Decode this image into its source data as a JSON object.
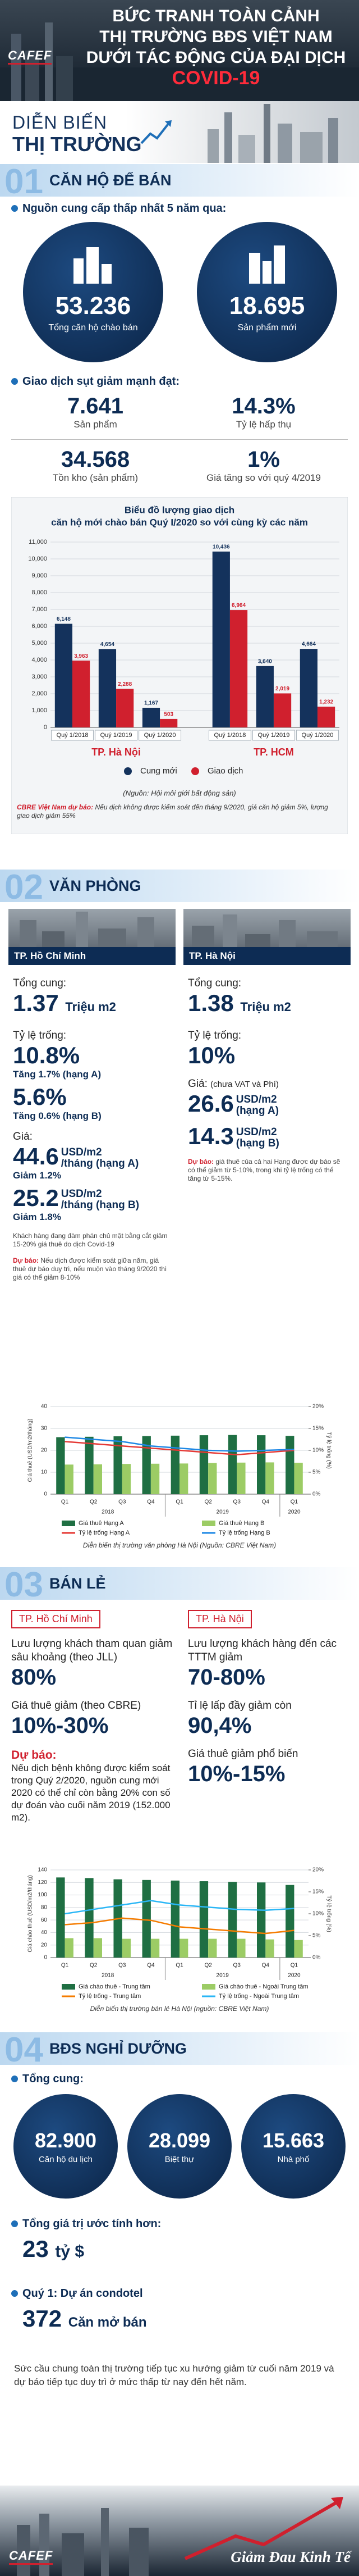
{
  "header": {
    "logo": "CAFEF",
    "title": [
      "BỨC TRANH TOÀN CẢNH",
      "THỊ TRƯỜNG BĐS VIỆT NAM",
      "DƯỚI TÁC ĐỘNG CỦA ĐẠI DỊCH"
    ],
    "highlight": "COVID-19"
  },
  "banner": [
    "DIỄN BIẾN",
    "THỊ TRƯỜNG"
  ],
  "apartment": {
    "number": "01",
    "title": "CĂN HỘ ĐỂ BÁN",
    "supply_heading": "Nguồn cung cấp thấp nhất 5 năm qua:",
    "circles": [
      {
        "value": "53.236",
        "label": "Tổng căn hộ chào bán"
      },
      {
        "value": "18.695",
        "label": "Sản phẩm mới"
      }
    ],
    "transactions_heading": "Giao dịch sụt giảm mạnh đạt:",
    "stats": [
      {
        "value": "7.641",
        "label": "Sản phẩm"
      },
      {
        "value": "14.3%",
        "label": "Tỷ lệ hấp thụ"
      },
      {
        "value": "34.568",
        "label": "Tồn kho (sản phẩm)"
      },
      {
        "value": "1%",
        "label": "Giá tăng so với quý 4/2019"
      }
    ],
    "chart_data": {
      "type": "bar",
      "title": [
        "Biểu đồ lượng giao dịch",
        "căn hộ mới chào bán Quý I/2020 so với cùng kỳ các năm"
      ],
      "categories": [
        "Quý 1/2018",
        "Quý 1/2019",
        "Quý 1/2020",
        "Quý 1/2018",
        "Quý 1/2019",
        "Quý 1/2020"
      ],
      "groups": [
        "TP. Hà Nội",
        "TP. HCM"
      ],
      "series": [
        {
          "name": "Cung mới",
          "color": "#14325c",
          "values": [
            6148,
            4654,
            1167,
            10436,
            3640,
            4664
          ],
          "value_labels": [
            "6,148",
            "4,654",
            "1,167",
            "10,436",
            "3,640",
            "4,664"
          ]
        },
        {
          "name": "Giao dịch",
          "color": "#d0202e",
          "values": [
            3963,
            2288,
            503,
            6964,
            2019,
            1232
          ],
          "value_labels": [
            "3,963",
            "2,288",
            "503",
            "6,964",
            "2,019",
            "1,232"
          ]
        }
      ],
      "ylim": [
        0,
        11000
      ],
      "yticks": [
        0,
        {
          "value": 1000,
          "label": "1,000"
        },
        {
          "value": 2000,
          "label": "2,000"
        },
        {
          "value": 3000,
          "label": "3,000"
        },
        {
          "value": 4000,
          "label": "4,000"
        },
        {
          "value": 5000,
          "label": "5,000"
        },
        {
          "value": 6000,
          "label": "6,000"
        },
        {
          "value": 7000,
          "label": "7,000"
        },
        {
          "value": 8000,
          "label": "8,000"
        },
        {
          "value": 9000,
          "label": "9,000"
        },
        {
          "value": 10000,
          "label": "10,000"
        },
        {
          "value": 11000,
          "label": "11,000"
        }
      ],
      "grid": true
    },
    "source": "(Nguồn: Hội môi giới bất động sản)",
    "forecast_label": "CBRE Việt Nam dự báo:",
    "forecast": "Nếu dịch không được kiểm soát đến tháng 9/2020, giá căn hộ giảm 5%, lượng giao dịch giảm 55%"
  },
  "office": {
    "number": "02",
    "title": "VĂN PHÒNG",
    "hcm": {
      "name": "TP. Hồ Chí Minh",
      "supply_label": "Tổng cung:",
      "supply": "1.37",
      "supply_unit": "Triệu m2",
      "vacancy_label": "Tỷ lệ trống:",
      "vacancy_a": "10.8%",
      "vacancy_a_change": "Tăng 1.7% (hạng A)",
      "vacancy_b": "5.6%",
      "vacancy_b_change": "Tăng 0.6% (hạng B)",
      "price_label": "Giá:",
      "price_a": "44.6",
      "price_a_unit": [
        "USD/m2",
        "/tháng (hạng A)"
      ],
      "price_a_change": "Giảm 1.2%",
      "price_b": "25.2",
      "price_b_unit": [
        "USD/m2",
        "/tháng (hạng B)"
      ],
      "price_b_change": "Giảm 1.8%",
      "note": "Khách hàng đang đàm phán chủ mặt bằng cắt giảm 15-20% giá thuê do dịch Covid-19",
      "forecast_label": "Dự báo:",
      "forecast": "Nếu dịch được kiểm soát giữa năm, giá thuê dự báo duy trì, nếu muộn vào tháng 9/2020 thì giá có thể giảm 8-10%"
    },
    "hn": {
      "name": "TP. Hà Nội",
      "supply_label": "Tổng cung:",
      "supply": "1.38",
      "supply_unit": "Triệu m2",
      "vacancy_label": "Tỷ lệ trống:",
      "vacancy": "10%",
      "price_label": "Giá:",
      "price_note": "(chưa VAT và Phí)",
      "price_a": "26.6",
      "price_a_unit": [
        "USD/m2",
        "(hạng A)"
      ],
      "price_b": "14.3",
      "price_b_unit": [
        "USD/m2",
        "(hạng B)"
      ],
      "forecast_label": "Dự báo:",
      "forecast": "giá thuê của cả hai Hạng được dự báo sẽ có thể giảm từ 5-10%, trong khi tỷ lệ trống có thể tăng từ 5-15%."
    },
    "chart_data": {
      "type": "combo",
      "categories": [
        "Q1",
        "Q2",
        "Q3",
        "Q4",
        "Q1",
        "Q2",
        "Q3",
        "Q4",
        "Q1"
      ],
      "groups": [
        "2018",
        "2019",
        "2020"
      ],
      "ylabel": "Giá thuê (USD/m2/tháng)",
      "y2label": "Tỷ lệ trống (%)",
      "ylim": [
        0,
        40
      ],
      "yticks": [
        0,
        10,
        20,
        30,
        40
      ],
      "y2lim": [
        0,
        20
      ],
      "y2ticks": [
        {
          "value": 0,
          "label": "0%"
        },
        {
          "value": 5,
          "label": "5%"
        },
        {
          "value": 10,
          "label": "10%"
        },
        {
          "value": 15,
          "label": "15%"
        },
        {
          "value": 20,
          "label": "20%"
        }
      ],
      "series": [
        {
          "name": "Giá thuê Hạng A",
          "color": "#1f6f43",
          "values": [
            26.0,
            26.2,
            26.4,
            26.5,
            26.7,
            26.9,
            27.0,
            26.9,
            26.6
          ]
        },
        {
          "name": "Giá thuê Hạng B",
          "color": "#9ccc65",
          "values": [
            13.5,
            13.6,
            13.8,
            13.9,
            14.0,
            14.2,
            14.4,
            14.5,
            14.3
          ]
        },
        {
          "name": "Tỷ lệ trống Hạng A",
          "color": "#e53935",
          "axis": "y2",
          "values": [
            12,
            11.5,
            11,
            10.5,
            10,
            9.5,
            9,
            9.5,
            10
          ]
        },
        {
          "name": "Tỷ lệ trống Hạng B",
          "color": "#1e88e5",
          "axis": "y2",
          "values": [
            13,
            12.5,
            12,
            11,
            10.5,
            10,
            9.8,
            10,
            10.2
          ]
        }
      ],
      "grid": true
    },
    "caption": "Diễn biến thị trường văn phòng Hà Nội (Nguồn: CBRE Việt Nam)"
  },
  "retail": {
    "number": "03",
    "title": "BÁN LẺ",
    "hcm": {
      "name": "TP. Hồ Chí Minh",
      "items": [
        {
          "label": "Lưu lượng khách tham quan giảm sâu khoảng (theo JLL)",
          "value": "80%"
        },
        {
          "label": "Giá thuê giảm (theo CBRE)",
          "value": "10%-30%"
        }
      ],
      "forecast_label": "Dự báo:",
      "forecast": "Nếu dịch bệnh không được kiểm soát trong Quý 2/2020, nguồn cung mới 2020 có thể chỉ còn bằng 20% con số dự đoán vào cuối năm 2019 (152.000 m2)."
    },
    "hn": {
      "name": "TP. Hà Nội",
      "items": [
        {
          "label": "Lưu lượng khách hàng đến các TTTM giảm",
          "value": "70-80%"
        },
        {
          "label": "Tỉ lệ lấp đầy giảm còn",
          "value": "90,4%"
        },
        {
          "label": "Giá thuê giảm phổ biến",
          "value": "10%-15%"
        }
      ]
    },
    "chart_data": {
      "type": "combo",
      "categories": [
        "Q1",
        "Q2",
        "Q3",
        "Q4",
        "Q1",
        "Q2",
        "Q3",
        "Q4",
        "Q1"
      ],
      "groups": [
        "2018",
        "2019",
        "2020"
      ],
      "ylabel": "Giá chào thuê (USD/m2/tháng)",
      "y2label": "Tỷ lệ trống (%)",
      "ylim": [
        0,
        140
      ],
      "yticks": [
        0,
        20,
        40,
        60,
        80,
        100,
        120,
        140
      ],
      "y2lim": [
        0,
        20
      ],
      "y2ticks": [
        {
          "value": 0,
          "label": "0%"
        },
        {
          "value": 5,
          "label": "5%"
        },
        {
          "value": 10,
          "label": "10%"
        },
        {
          "value": 15,
          "label": "15%"
        },
        {
          "value": 20,
          "label": "20%"
        }
      ],
      "series": [
        {
          "name": "Giá chào thuê - Trung tâm",
          "color": "#1f6f43",
          "values": [
            128,
            127,
            125,
            124,
            123,
            122,
            121,
            120,
            116
          ]
        },
        {
          "name": "Giá chào thuê - Ngoài Trung tâm",
          "color": "#9ccc65",
          "values": [
            31,
            31,
            30,
            30,
            30,
            30,
            30,
            29,
            28
          ]
        },
        {
          "name": "Tỷ lệ trống - Trung tâm",
          "color": "#f57c00",
          "axis": "y2",
          "values": [
            7.5,
            8,
            9,
            8.5,
            7,
            6.5,
            6,
            5.5,
            6.2
          ]
        },
        {
          "name": "Tỷ lệ trống - Ngoài Trung tâm",
          "color": "#29b6f6",
          "axis": "y2",
          "values": [
            10,
            11,
            12,
            13,
            12,
            11.5,
            11,
            10.8,
            11.2
          ]
        }
      ],
      "grid": true
    },
    "caption": "Diễn biến thị trường bán lẻ Hà Nội (nguồn: CBRE Việt Nam)"
  },
  "resort": {
    "number": "04",
    "title": "BĐS NGHỈ DƯỠNG",
    "supply_label": "Tổng cung:",
    "circles": [
      {
        "value": "82.900",
        "label": "Căn hộ du lịch"
      },
      {
        "value": "28.099",
        "label": "Biệt thự"
      },
      {
        "value": "15.663",
        "label": "Nhà phố"
      }
    ],
    "value_label": "Tổng giá trị ước tính hơn:",
    "value": "23",
    "value_unit": "tỷ $",
    "condotel_label": "Quý 1: Dự án condotel",
    "condotel_value": "372",
    "condotel_unit": "Căn mở bán",
    "summary": "Sức cầu chung toàn thị trường tiếp tục xu hướng giảm từ cuối năm 2019 và dự báo tiếp tục duy trì ở mức thấp từ nay đến hết năm."
  },
  "footer": {
    "logo": "CAFEF",
    "series": "Giảm Đau Kinh Tế"
  }
}
